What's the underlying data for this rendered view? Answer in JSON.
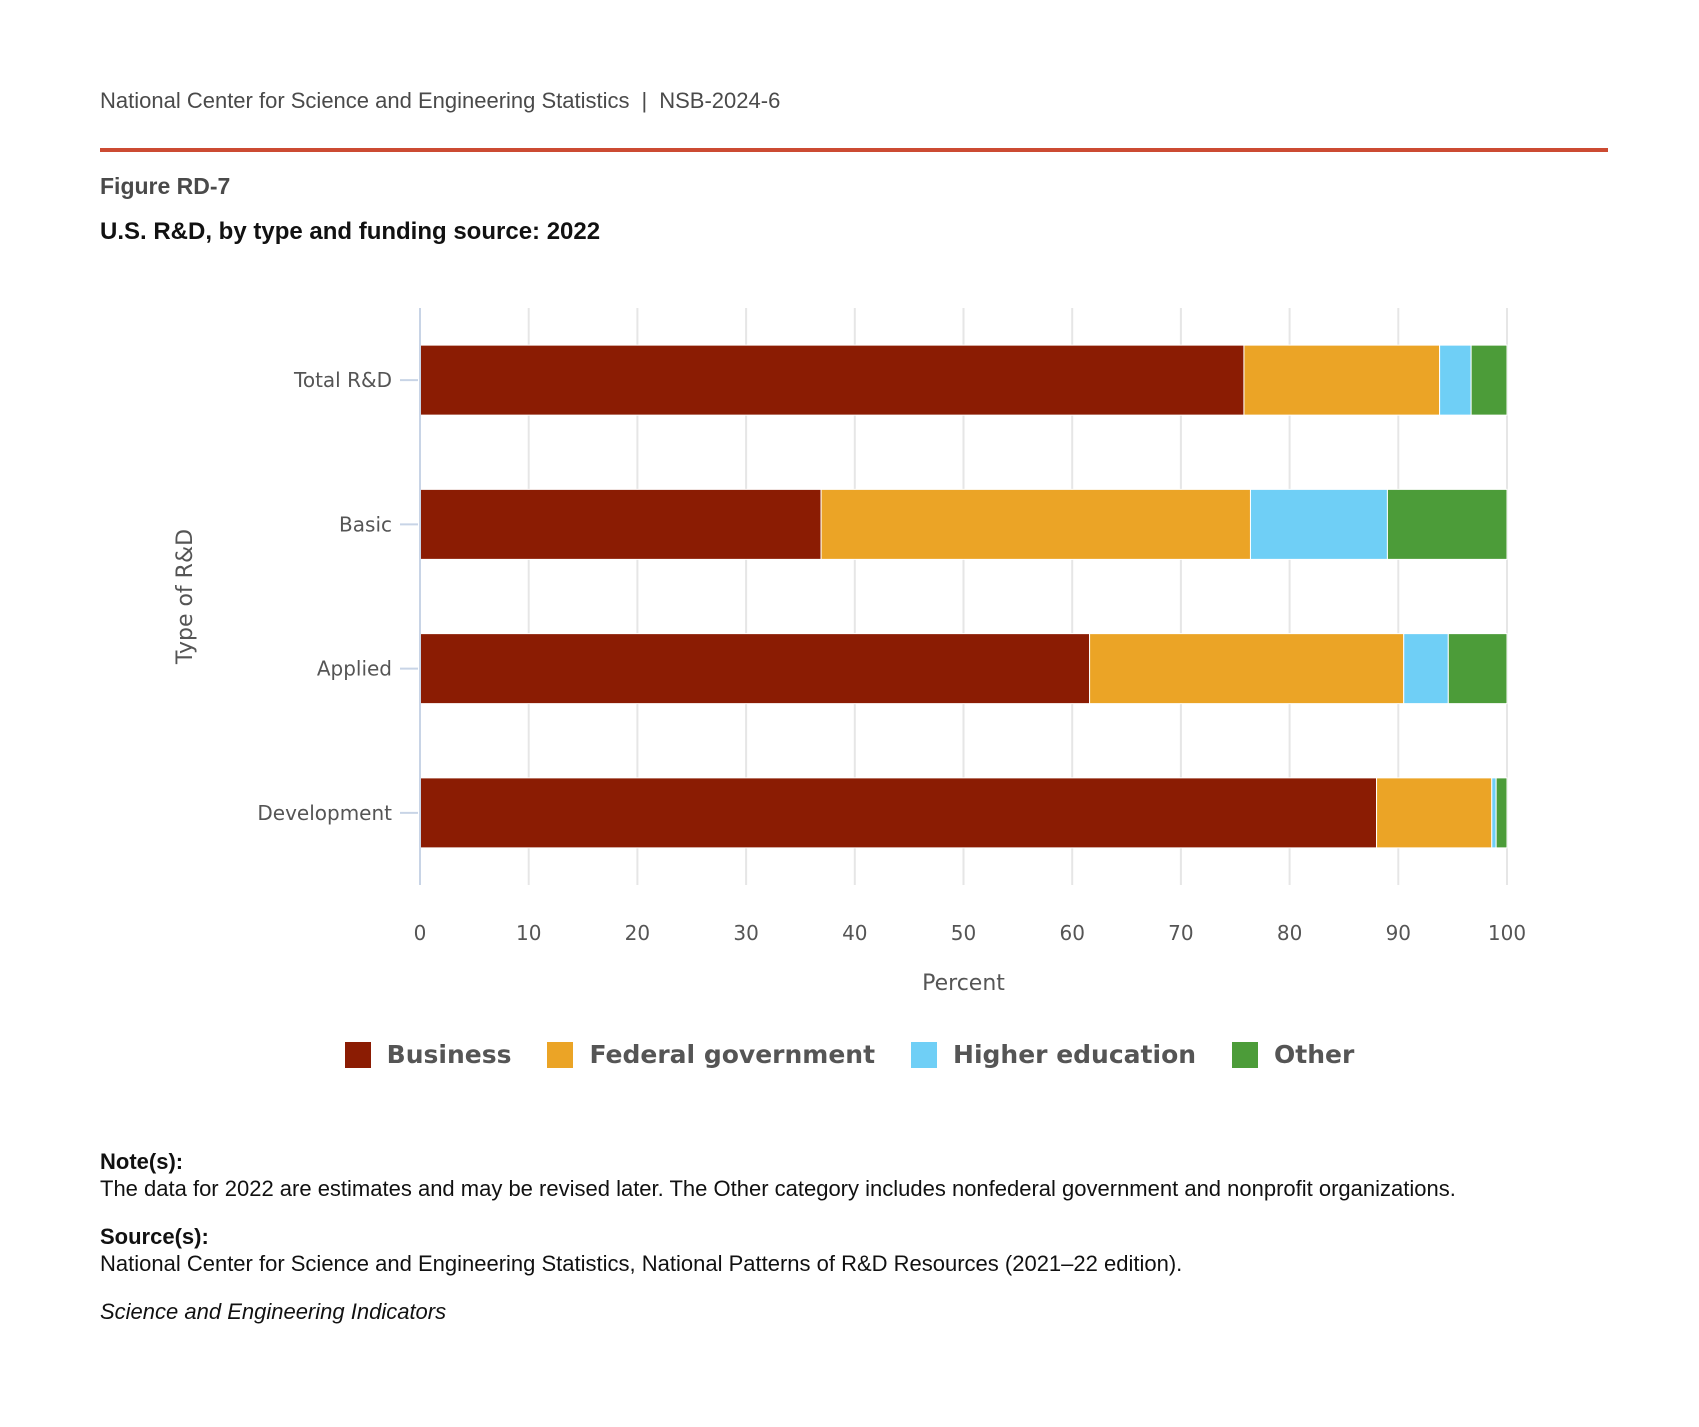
{
  "header": {
    "org": "National Center for Science and Engineering Statistics",
    "separator": "|",
    "report_id": "NSB-2024-6"
  },
  "figure": {
    "label": "Figure RD-7",
    "title": "U.S. R&D, by type and funding source: 2022"
  },
  "colors": {
    "rule": "#cc4b32",
    "Business": "#8b1c03",
    "Federal government": "#eba426",
    "Higher education": "#6fcff6",
    "Other": "#4c9c39"
  },
  "chart_data": {
    "type": "bar",
    "orientation": "horizontal",
    "stacked": true,
    "title": "U.S. R&D, by type and funding source: 2022",
    "xlabel": "Percent",
    "ylabel": "Type of R&D",
    "xlim": [
      0,
      100
    ],
    "xticks": [
      0,
      10,
      20,
      30,
      40,
      50,
      60,
      70,
      80,
      90,
      100
    ],
    "grid": true,
    "legend_position": "bottom",
    "categories": [
      "Total R&D",
      "Basic",
      "Applied",
      "Development"
    ],
    "series": [
      {
        "name": "Business",
        "values": [
          75.8,
          36.9,
          61.6,
          88.0
        ]
      },
      {
        "name": "Federal government",
        "values": [
          18.0,
          39.5,
          28.9,
          10.6
        ]
      },
      {
        "name": "Higher education",
        "values": [
          2.9,
          12.6,
          4.1,
          0.4
        ]
      },
      {
        "name": "Other",
        "values": [
          3.3,
          11.0,
          5.4,
          1.0
        ]
      }
    ]
  },
  "legend": [
    {
      "label": "Business"
    },
    {
      "label": "Federal government"
    },
    {
      "label": "Higher education"
    },
    {
      "label": "Other"
    }
  ],
  "notes": {
    "notes_heading": "Note(s):",
    "notes_text": "The data for 2022 are estimates and may be revised later. The Other category includes nonfederal government and nonprofit organizations.",
    "source_heading": "Source(s):",
    "source_text": "National Center for Science and Engineering Statistics, National Patterns of R&D Resources (2021–22 edition).",
    "publication": "Science and Engineering Indicators"
  }
}
